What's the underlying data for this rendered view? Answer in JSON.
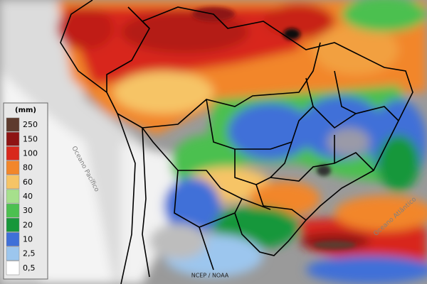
{
  "legend": {
    "unit": "(mm)",
    "items": [
      {
        "label": "250",
        "color": "#5e3b2e"
      },
      {
        "label": "150",
        "color": "#8e1414"
      },
      {
        "label": "100",
        "color": "#d8281c"
      },
      {
        "label": "80",
        "color": "#f2862a"
      },
      {
        "label": "60",
        "color": "#f6c466"
      },
      {
        "label": "40",
        "color": "#a6e08c"
      },
      {
        "label": "30",
        "color": "#4cc050"
      },
      {
        "label": "20",
        "color": "#17973a"
      },
      {
        "label": "10",
        "color": "#3f70d8"
      },
      {
        "label": "2,5",
        "color": "#9cc6ee"
      },
      {
        "label": "0,5",
        "color": "#ffffff"
      }
    ]
  },
  "labels": {
    "pacific": "Oceano Pacífico",
    "atlantic": "Oceano Atlântico",
    "source": "NCEP / NOAA"
  }
}
